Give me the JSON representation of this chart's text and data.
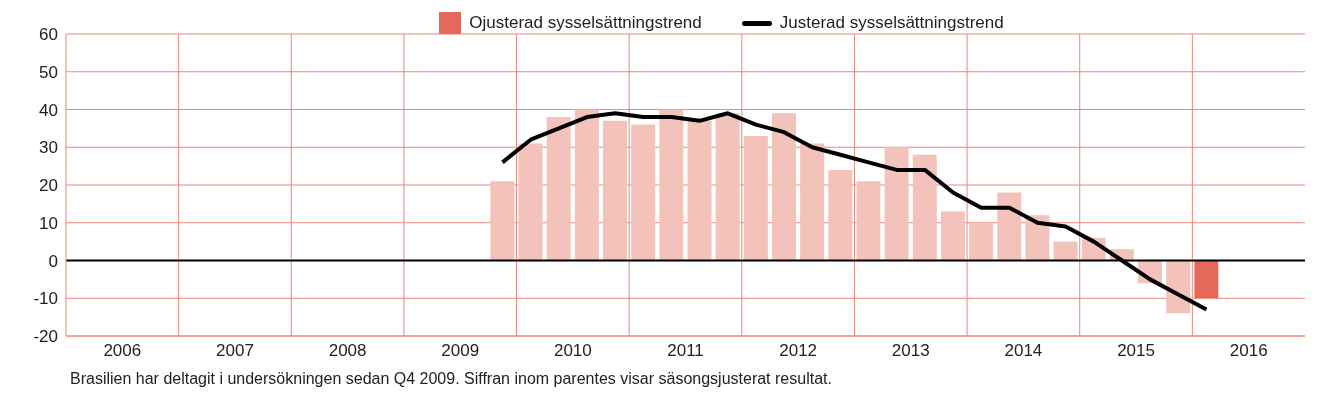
{
  "chart_data": {
    "type": "bar",
    "x": [
      2009.875,
      2010.125,
      2010.375,
      2010.625,
      2010.875,
      2011.125,
      2011.375,
      2011.625,
      2011.875,
      2012.125,
      2012.375,
      2012.625,
      2012.875,
      2013.125,
      2013.375,
      2013.625,
      2013.875,
      2014.125,
      2014.375,
      2014.625,
      2014.875,
      2015.125,
      2015.375,
      2015.625,
      2015.875,
      2016.125
    ],
    "series": [
      {
        "name": "Ojusterad sysselsättningstrend",
        "color": "#e5695a",
        "colors": [
          "#f3c2ba",
          "#f3c2ba",
          "#f3c2ba",
          "#f3c2ba",
          "#f3c2ba",
          "#f3c2ba",
          "#f3c2ba",
          "#f3c2ba",
          "#f3c2ba",
          "#f3c2ba",
          "#f3c2ba",
          "#f3c2ba",
          "#f3c2ba",
          "#f3c2ba",
          "#f3c2ba",
          "#f3c2ba",
          "#f3c2ba",
          "#f3c2ba",
          "#f3c2ba",
          "#f3c2ba",
          "#f3c2ba",
          "#f3c2ba",
          "#f3c2ba",
          "#f3c2ba",
          "#f3c2ba",
          "#e5695a"
        ],
        "values": [
          21,
          31,
          38,
          40,
          37,
          36,
          40,
          37,
          39,
          33,
          39,
          31,
          24,
          21,
          30,
          28,
          13,
          10,
          18,
          12,
          5,
          6,
          3,
          -6,
          -14,
          -10
        ]
      },
      {
        "name": "Justerad sysselsättningstrend",
        "type": "line",
        "color": "#000000",
        "values": [
          26,
          32,
          35,
          38,
          39,
          38,
          38,
          37,
          39,
          36,
          34,
          30,
          28,
          26,
          24,
          24,
          18,
          14,
          14,
          10,
          9,
          5,
          0,
          -5,
          -9,
          -13
        ]
      }
    ],
    "xlim": [
      2006,
      2017
    ],
    "xticks": [
      {
        "value": 2006.5,
        "label": "2006"
      },
      {
        "value": 2007,
        "label": null
      },
      {
        "value": 2007.5,
        "label": "2007"
      },
      {
        "value": 2008,
        "label": null
      },
      {
        "value": 2008.5,
        "label": "2008"
      },
      {
        "value": 2009,
        "label": null
      },
      {
        "value": 2009.5,
        "label": "2009"
      },
      {
        "value": 2010,
        "label": null
      },
      {
        "value": 2010.5,
        "label": "2010"
      },
      {
        "value": 2011,
        "label": null
      },
      {
        "value": 2011.5,
        "label": "2011"
      },
      {
        "value": 2012,
        "label": null
      },
      {
        "value": 2012.5,
        "label": "2012"
      },
      {
        "value": 2013,
        "label": null
      },
      {
        "value": 2013.5,
        "label": "2013"
      },
      {
        "value": 2014,
        "label": null
      },
      {
        "value": 2014.5,
        "label": "2014"
      },
      {
        "value": 2015,
        "label": null
      },
      {
        "value": 2015.5,
        "label": "2015"
      },
      {
        "value": 2016,
        "label": null
      },
      {
        "value": 2016.5,
        "label": "2016"
      }
    ],
    "ylim": [
      -20,
      60
    ],
    "yticks": [
      -20,
      -10,
      0,
      10,
      20,
      30,
      40,
      50,
      60
    ],
    "grid": true,
    "legend": "top",
    "ref_lines": [
      {
        "axis": "y",
        "value": 0,
        "color": "#000000"
      }
    ],
    "annotations": [
      "Brasilien har deltagit i undersökningen sedan Q4 2009. Siffran inom parentes visar säsongsjusterat resultat."
    ]
  }
}
